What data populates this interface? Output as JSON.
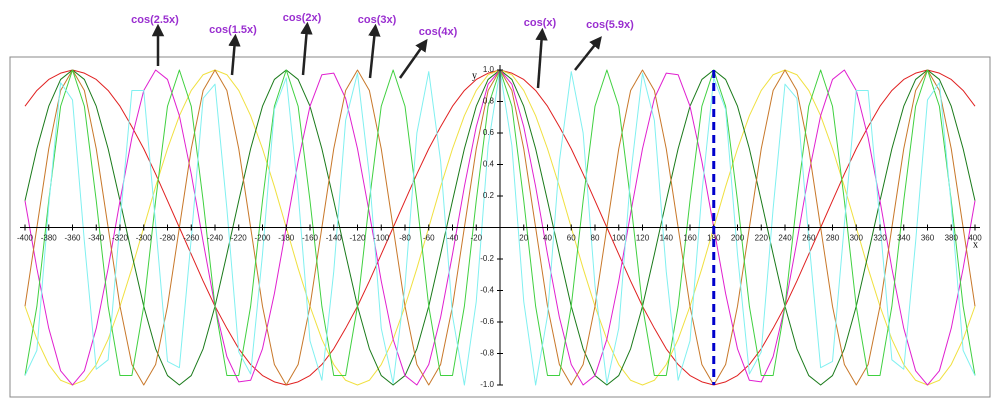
{
  "chart_data": {
    "type": "line",
    "x_label": "x",
    "y_label": "y",
    "xlim": [
      -400,
      400
    ],
    "ylim": [
      -1,
      1
    ],
    "xticks": [
      -400,
      -380,
      -360,
      -340,
      -320,
      -300,
      -280,
      -260,
      -240,
      -220,
      -200,
      -180,
      -160,
      -140,
      -120,
      -100,
      -80,
      -60,
      -40,
      -20,
      20,
      40,
      60,
      80,
      100,
      120,
      140,
      160,
      180,
      200,
      220,
      240,
      260,
      280,
      300,
      320,
      340,
      360,
      380,
      400
    ],
    "yticks": [
      {
        "value": -1,
        "label": "-1.0"
      },
      -0.8,
      -0.6,
      -0.4,
      -0.2,
      0.2,
      0.4,
      0.6,
      0.8,
      {
        "value": 1,
        "label": "1.0"
      }
    ],
    "reference_line": {
      "x": 180,
      "color": "#0000cc"
    },
    "x": [
      -400,
      -390,
      -380,
      -370,
      -360,
      -350,
      -340,
      -330,
      -320,
      -310,
      -300,
      -290,
      -280,
      -270,
      -260,
      -250,
      -240,
      -230,
      -220,
      -210,
      -200,
      -190,
      -180,
      -170,
      -160,
      -150,
      -140,
      -130,
      -120,
      -110,
      -100,
      -90,
      -80,
      -70,
      -60,
      -50,
      -40,
      -30,
      -20,
      -10,
      0,
      10,
      20,
      30,
      40,
      50,
      60,
      70,
      80,
      90,
      100,
      110,
      120,
      130,
      140,
      150,
      160,
      170,
      180,
      190,
      200,
      210,
      220,
      230,
      240,
      250,
      260,
      270,
      280,
      290,
      300,
      310,
      320,
      330,
      340,
      350,
      360,
      370,
      380,
      390,
      400
    ],
    "series": [
      {
        "name": "cos(x)",
        "color": "#e02020",
        "values": [
          0.77,
          0.87,
          0.94,
          0.98,
          1,
          0.98,
          0.94,
          0.87,
          0.77,
          0.64,
          0.5,
          0.34,
          0.17,
          0,
          -0.17,
          -0.34,
          -0.5,
          -0.64,
          -0.77,
          -0.87,
          -0.94,
          -0.98,
          -1,
          -0.98,
          -0.94,
          -0.87,
          -0.77,
          -0.64,
          -0.5,
          -0.34,
          -0.17,
          0,
          0.17,
          0.34,
          0.5,
          0.64,
          0.77,
          0.87,
          0.94,
          0.98,
          1,
          0.98,
          0.94,
          0.87,
          0.77,
          0.64,
          0.5,
          0.34,
          0.17,
          0,
          -0.17,
          -0.34,
          -0.5,
          -0.64,
          -0.77,
          -0.87,
          -0.94,
          -0.98,
          -1,
          -0.98,
          -0.94,
          -0.87,
          -0.77,
          -0.64,
          -0.5,
          -0.34,
          -0.17,
          0,
          0.17,
          0.34,
          0.5,
          0.64,
          0.77,
          0.87,
          0.94,
          0.98,
          1,
          0.98,
          0.94,
          0.87,
          0.77
        ]
      },
      {
        "name": "cos(1.5x)",
        "color": "#f0e040",
        "values": [
          -0.5,
          -0.71,
          -0.87,
          -0.97,
          -1,
          -0.97,
          -0.87,
          -0.71,
          -0.5,
          -0.26,
          0,
          0.26,
          0.5,
          0.71,
          0.87,
          0.97,
          1,
          0.97,
          0.87,
          0.71,
          0.5,
          0.26,
          0,
          -0.26,
          -0.5,
          -0.71,
          -0.87,
          -0.97,
          -1,
          -0.97,
          -0.87,
          -0.71,
          -0.5,
          -0.26,
          0,
          0.26,
          0.5,
          0.71,
          0.87,
          0.97,
          1,
          0.97,
          0.87,
          0.71,
          0.5,
          0.26,
          0,
          -0.26,
          -0.5,
          -0.71,
          -0.87,
          -0.97,
          -1,
          -0.97,
          -0.87,
          -0.71,
          -0.5,
          -0.26,
          0,
          0.26,
          0.5,
          0.71,
          0.87,
          0.97,
          1,
          0.97,
          0.87,
          0.71,
          0.5,
          0.26,
          0,
          -0.26,
          -0.5,
          -0.71,
          -0.87,
          -0.97,
          -1,
          -0.97,
          -0.87,
          -0.71,
          -0.5
        ]
      },
      {
        "name": "cos(2x)",
        "color": "#1a7a1a",
        "values": [
          0.17,
          0.5,
          0.77,
          0.94,
          1,
          0.94,
          0.77,
          0.5,
          0.17,
          -0.17,
          -0.5,
          -0.77,
          -0.94,
          -1,
          -0.94,
          -0.77,
          -0.5,
          -0.17,
          0.17,
          0.5,
          0.77,
          0.94,
          1,
          0.94,
          0.77,
          0.5,
          0.17,
          -0.17,
          -0.5,
          -0.77,
          -0.94,
          -1,
          -0.94,
          -0.77,
          -0.5,
          -0.17,
          0.17,
          0.5,
          0.77,
          0.94,
          1,
          0.94,
          0.77,
          0.5,
          0.17,
          -0.17,
          -0.5,
          -0.77,
          -0.94,
          -1,
          -0.94,
          -0.77,
          -0.5,
          -0.17,
          0.17,
          0.5,
          0.77,
          0.94,
          1,
          0.94,
          0.77,
          0.5,
          0.17,
          -0.17,
          -0.5,
          -0.77,
          -0.94,
          -1,
          -0.94,
          -0.77,
          -0.5,
          -0.17,
          0.17,
          0.5,
          0.77,
          0.94,
          1,
          0.94,
          0.77,
          0.5,
          0.17
        ]
      },
      {
        "name": "cos(2.5x)",
        "color": "#e020d0",
        "values": [
          0.17,
          -0.26,
          -0.64,
          -0.91,
          -1,
          -0.91,
          -0.64,
          -0.26,
          0.17,
          0.57,
          0.87,
          1,
          0.94,
          0.71,
          0.34,
          -0.09,
          -0.5,
          -0.82,
          -0.98,
          -0.97,
          -0.77,
          -0.42,
          0,
          0.42,
          0.77,
          0.97,
          0.98,
          0.82,
          0.5,
          0.09,
          -0.34,
          -0.71,
          -0.94,
          -1,
          -0.87,
          -0.57,
          -0.17,
          0.26,
          0.64,
          0.91,
          1,
          0.91,
          0.64,
          0.26,
          -0.17,
          -0.57,
          -0.87,
          -1,
          -0.94,
          -0.71,
          -0.34,
          0.09,
          0.5,
          0.82,
          0.98,
          0.97,
          0.77,
          0.42,
          0,
          -0.42,
          -0.77,
          -0.97,
          -0.98,
          -0.82,
          -0.5,
          -0.09,
          0.34,
          0.71,
          0.94,
          1,
          0.87,
          0.57,
          0.17,
          -0.26,
          -0.64,
          -0.91,
          -1,
          -0.91,
          -0.64,
          -0.26,
          0.17
        ]
      },
      {
        "name": "cos(3x)",
        "color": "#c8782a",
        "values": [
          -0.5,
          0,
          0.5,
          0.87,
          1,
          0.87,
          0.5,
          0,
          -0.5,
          -0.87,
          -1,
          -0.87,
          -0.5,
          0,
          0.5,
          0.87,
          1,
          0.87,
          0.5,
          0,
          -0.5,
          -0.87,
          -1,
          -0.87,
          -0.5,
          0,
          0.5,
          0.87,
          1,
          0.87,
          0.5,
          0,
          -0.5,
          -0.87,
          -1,
          -0.87,
          -0.5,
          0,
          0.5,
          0.87,
          1,
          0.87,
          0.5,
          0,
          -0.5,
          -0.87,
          -1,
          -0.87,
          -0.5,
          0,
          0.5,
          0.87,
          1,
          0.87,
          0.5,
          0,
          -0.5,
          -0.87,
          -1,
          -0.87,
          -0.5,
          0,
          0.5,
          0.87,
          1,
          0.87,
          0.5,
          0,
          -0.5,
          -0.87,
          -1,
          -0.87,
          -0.5,
          0,
          0.5,
          0.87,
          1,
          0.87,
          0.5,
          0,
          -0.5
        ]
      },
      {
        "name": "cos(4x)",
        "color": "#40d040",
        "values": [
          -0.94,
          -0.5,
          0.17,
          0.77,
          1,
          0.77,
          0.17,
          -0.5,
          -0.94,
          -0.94,
          -0.5,
          0.17,
          0.77,
          1,
          0.77,
          0.17,
          -0.5,
          -0.94,
          -0.94,
          -0.5,
          0.17,
          0.77,
          1,
          0.77,
          0.17,
          -0.5,
          -0.94,
          -0.94,
          -0.5,
          0.17,
          0.77,
          1,
          0.77,
          0.17,
          -0.5,
          -0.94,
          -0.94,
          -0.5,
          0.17,
          0.77,
          1,
          0.77,
          0.17,
          -0.5,
          -0.94,
          -0.94,
          -0.5,
          0.17,
          0.77,
          1,
          0.77,
          0.17,
          -0.5,
          -0.94,
          -0.94,
          -0.5,
          0.17,
          0.77,
          1,
          0.77,
          0.17,
          -0.5,
          -0.94,
          -0.94,
          -0.5,
          0.17,
          0.77,
          1,
          0.77,
          0.17,
          -0.5,
          -0.94,
          -0.94,
          -0.5,
          0.17,
          0.77,
          1,
          0.77,
          0.17,
          -0.5,
          -0.94
        ]
      },
      {
        "name": "cos(5.9x)",
        "color": "#80f0f0",
        "values": [
          -0.94,
          -0.78,
          0.14,
          0.92,
          0.81,
          -0.09,
          -0.9,
          -0.84,
          0.03,
          0.87,
          0.87,
          0.02,
          -0.85,
          -0.89,
          -0.07,
          0.82,
          0.91,
          0.12,
          -0.79,
          -0.93,
          -0.17,
          0.75,
          0.95,
          0.22,
          -0.72,
          -0.97,
          -0.28,
          0.68,
          0.98,
          0.33,
          -0.64,
          -0.99,
          -0.37,
          0.6,
          0.99,
          0.42,
          -0.56,
          -1,
          -0.47,
          0.52,
          1,
          0.52,
          -0.47,
          -1,
          -0.56,
          0.42,
          0.99,
          0.6,
          -0.37,
          -0.99,
          -0.64,
          0.33,
          0.98,
          0.68,
          -0.28,
          -0.97,
          -0.72,
          0.22,
          0.95,
          0.75,
          -0.17,
          -0.93,
          -0.79,
          0.12,
          0.91,
          0.82,
          -0.07,
          -0.89,
          -0.85,
          0.02,
          0.87,
          0.87,
          0.03,
          -0.84,
          -0.9,
          -0.09,
          0.81,
          0.92,
          0.14,
          -0.78,
          -0.94
        ]
      }
    ]
  }
}
